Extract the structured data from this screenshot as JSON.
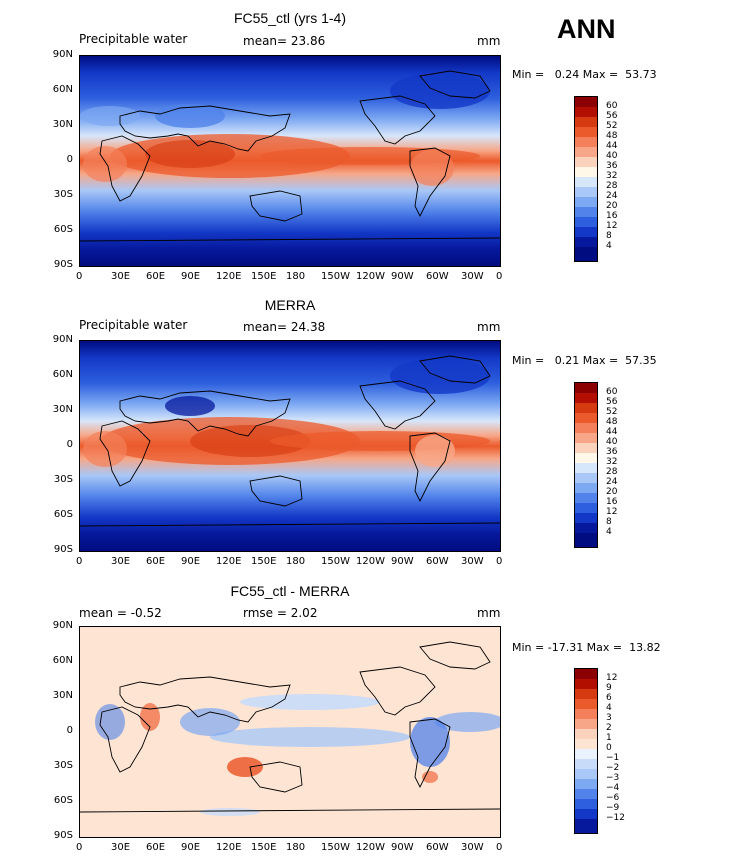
{
  "header": {
    "season": "ANN"
  },
  "axes": {
    "x_ticks": [
      "0",
      "30E",
      "60E",
      "90E",
      "120E",
      "150E",
      "180",
      "150W",
      "120W",
      "90W",
      "60W",
      "30W",
      "0"
    ],
    "y_ticks": [
      "90N",
      "60N",
      "30N",
      "0",
      "30S",
      "60S",
      "90S"
    ]
  },
  "panels": [
    {
      "title": "FC55_ctl (yrs 1-4)",
      "left_label": "Precipitable water",
      "mid_label": "mean=  23.86",
      "units": "mm",
      "minmax": "Min =   0.24 Max =  53.73",
      "colorbar_labels": [
        "60",
        "56",
        "52",
        "48",
        "44",
        "40",
        "36",
        "32",
        "28",
        "24",
        "20",
        "16",
        "12",
        "8",
        "4"
      ],
      "colors": [
        "#8b0000",
        "#b30f00",
        "#d63a11",
        "#eb5a2b",
        "#f3805a",
        "#f7a788",
        "#fbd3bd",
        "#fff8e8",
        "#d6e6fb",
        "#a9c8f7",
        "#7da8f2",
        "#5183ea",
        "#2d5fde",
        "#1338c7",
        "#06189c",
        "#000c80"
      ]
    },
    {
      "title": "MERRA",
      "left_label": "Precipitable water",
      "mid_label": "mean=  24.38",
      "units": "mm",
      "minmax": "Min =   0.21 Max =  57.35",
      "colorbar_labels": [
        "60",
        "56",
        "52",
        "48",
        "44",
        "40",
        "36",
        "32",
        "28",
        "24",
        "20",
        "16",
        "12",
        "8",
        "4"
      ],
      "colors": [
        "#8b0000",
        "#b30f00",
        "#d63a11",
        "#eb5a2b",
        "#f3805a",
        "#f7a788",
        "#fbd3bd",
        "#fff8e8",
        "#d6e6fb",
        "#a9c8f7",
        "#7da8f2",
        "#5183ea",
        "#2d5fde",
        "#1338c7",
        "#06189c",
        "#000c80"
      ]
    },
    {
      "title": "FC55_ctl - MERRA",
      "left_label": "mean =  -0.52",
      "mid_label": "rmse =   2.02",
      "units": "mm",
      "minmax": "Min = -17.31 Max =  13.82",
      "colorbar_labels": [
        "12",
        "9",
        "6",
        "4",
        "3",
        "2",
        "1",
        "0",
        "−1",
        "−2",
        "−3",
        "−4",
        "−6",
        "−9",
        "−12"
      ],
      "colors": [
        "#8b0000",
        "#b30f00",
        "#d63a11",
        "#eb5a2b",
        "#f3805a",
        "#f7a788",
        "#fbd3bd",
        "#fde4d3",
        "#eaf2fd",
        "#c8dcf9",
        "#a9c8f7",
        "#7da8f2",
        "#5183ea",
        "#2d5fde",
        "#1338c7",
        "#06189c"
      ]
    }
  ]
}
